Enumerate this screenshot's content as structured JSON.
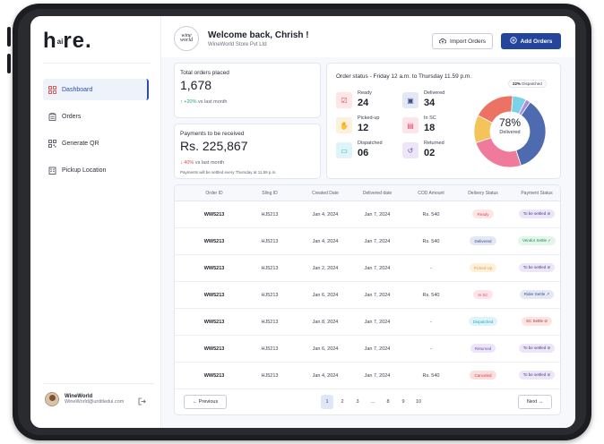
{
  "sidebar": {
    "logo_main": "h",
    "logo_small": "ai",
    "logo_rest": "re.",
    "items": [
      {
        "label": "Dashboard",
        "icon": "grid-icon",
        "active": true
      },
      {
        "label": "Orders",
        "icon": "clipboard-icon",
        "active": false
      },
      {
        "label": "Generate QR",
        "icon": "qr-code-icon",
        "active": false
      },
      {
        "label": "Pickup Location",
        "icon": "building-icon",
        "active": false
      }
    ],
    "user": {
      "name": "WineWorld",
      "email": "WineWorld@untitledui.com"
    }
  },
  "header": {
    "brand_logo_text": "wine world",
    "welcome": "Welcome back, Chrish !",
    "store": "WineWorld Store Pvt Ltd",
    "import_label": "Import Orders",
    "add_label": "Add Orders"
  },
  "stats": {
    "total": {
      "label": "Total orders placed",
      "value": "1,678",
      "trend": "+20%",
      "trend_suffix": "vs last month"
    },
    "payments": {
      "label": "Payments to be received",
      "value": "Rs. 225,867",
      "trend": "40%",
      "trend_suffix": "vs last month",
      "note": "Payments will be settled every Thursday at 11.59 p.m."
    }
  },
  "status": {
    "title": "Order status - Friday 12 a.m. to Thursday 11.59 p.m.",
    "items": [
      {
        "name": "Ready",
        "value": "24",
        "bg": "#fde7e6",
        "fg": "#e14a44",
        "icon": "checkbox-icon"
      },
      {
        "name": "Delivered",
        "value": "34",
        "bg": "#e4e8f4",
        "fg": "#3a4f8f",
        "icon": "package-icon"
      },
      {
        "name": "Picked-up",
        "value": "12",
        "bg": "#fdf1dd",
        "fg": "#e0a13a",
        "icon": "hand-icon"
      },
      {
        "name": "In SC",
        "value": "18",
        "bg": "#fde4ea",
        "fg": "#e14a6a",
        "icon": "warehouse-icon"
      },
      {
        "name": "Dispatched",
        "value": "06",
        "bg": "#dff4f9",
        "fg": "#2aa7c9",
        "icon": "truck-icon"
      },
      {
        "name": "Returned",
        "value": "02",
        "bg": "#ece6f8",
        "fg": "#6a4fc1",
        "icon": "return-icon"
      }
    ],
    "donut": {
      "center_pct": "78%",
      "center_label": "Delivered",
      "tag_pct": "22%",
      "tag_label": "Dispatched"
    }
  },
  "chart_data": {
    "type": "pie",
    "categories": [
      "Delivered",
      "Ready",
      "Picked-up",
      "In SC",
      "Dispatched",
      "Returned"
    ],
    "values": [
      34,
      24,
      12,
      18,
      6,
      2
    ],
    "colors": [
      "#4f6bb0",
      "#f07a9b",
      "#f4c35a",
      "#ec7264",
      "#7bd2e6",
      "#a98ae6"
    ]
  },
  "table": {
    "headers": [
      "Order ID",
      "Sling ID",
      "Created Date",
      "Delivered date",
      "COD Amount",
      "Delivery Status",
      "Payment Status"
    ],
    "rows": [
      {
        "order": "WW5213",
        "sling": "HJ5213",
        "created": "Jan 4, 2024",
        "delivered": "Jan 7, 2024",
        "cod": "Rs. 540",
        "dstatus": "Ready",
        "pstatus": "To be settled ⊘"
      },
      {
        "order": "WW5213",
        "sling": "HJ5213",
        "created": "Jan 4, 2024",
        "delivered": "Jan 7, 2024",
        "cod": "Rs. 540",
        "dstatus": "Delivered",
        "pstatus": "Vendor Settle ✓"
      },
      {
        "order": "WW5213",
        "sling": "HJ5213",
        "created": "Jan 2, 2024",
        "delivered": "Jan 7, 2024",
        "cod": "-",
        "dstatus": "Picked-Up",
        "pstatus": "To be settled ⊘"
      },
      {
        "order": "WW5213",
        "sling": "HJ5213",
        "created": "Jan 6, 2024",
        "delivered": "Jan 7, 2024",
        "cod": "Rs. 540",
        "dstatus": "In SC",
        "pstatus": "Rider Settle ↗"
      },
      {
        "order": "WW5213",
        "sling": "HJ5213",
        "created": "Jan 8, 2024",
        "delivered": "Jan 7, 2024",
        "cod": "-",
        "dstatus": "Dispatched",
        "pstatus": "SC Settle ⊘"
      },
      {
        "order": "WW5213",
        "sling": "HJ5213",
        "created": "Jan 6, 2024",
        "delivered": "Jan 7, 2024",
        "cod": "-",
        "dstatus": "Returned",
        "pstatus": "To be settled ⊘"
      },
      {
        "order": "WW5213",
        "sling": "HJ5213",
        "created": "Jan 4, 2024",
        "delivered": "Jan 7, 2024",
        "cod": "Rs. 540",
        "dstatus": "Canceled",
        "pstatus": "To be settled ⊘"
      }
    ],
    "status_colors": {
      "Ready": {
        "bg": "#fde7e6",
        "fg": "#e14a44"
      },
      "Delivered": {
        "bg": "#e4e8f4",
        "fg": "#3a4f8f"
      },
      "Picked-Up": {
        "bg": "#fdf1dd",
        "fg": "#e0a13a"
      },
      "In SC": {
        "bg": "#fde4ea",
        "fg": "#e14a6a"
      },
      "Dispatched": {
        "bg": "#dff4f9",
        "fg": "#2aa7c9"
      },
      "Returned": {
        "bg": "#ece6f8",
        "fg": "#6a4fc1"
      },
      "Canceled": {
        "bg": "#fbdede",
        "fg": "#d83a3a"
      },
      "To be settled ⊘": {
        "bg": "#ece6f8",
        "fg": "#4a3f7a"
      },
      "Vendor Settle ✓": {
        "bg": "#e3f6ea",
        "fg": "#1e8a52"
      },
      "Rider Settle ↗": {
        "bg": "#e4e8f4",
        "fg": "#3a4f8f"
      },
      "SC Settle ⊘": {
        "bg": "#fde4e2",
        "fg": "#9a3a34"
      }
    },
    "pagination": {
      "prev": "Previous",
      "next": "Next",
      "pages": [
        "1",
        "2",
        "3",
        "...",
        "8",
        "9",
        "10"
      ],
      "current": "1"
    }
  }
}
